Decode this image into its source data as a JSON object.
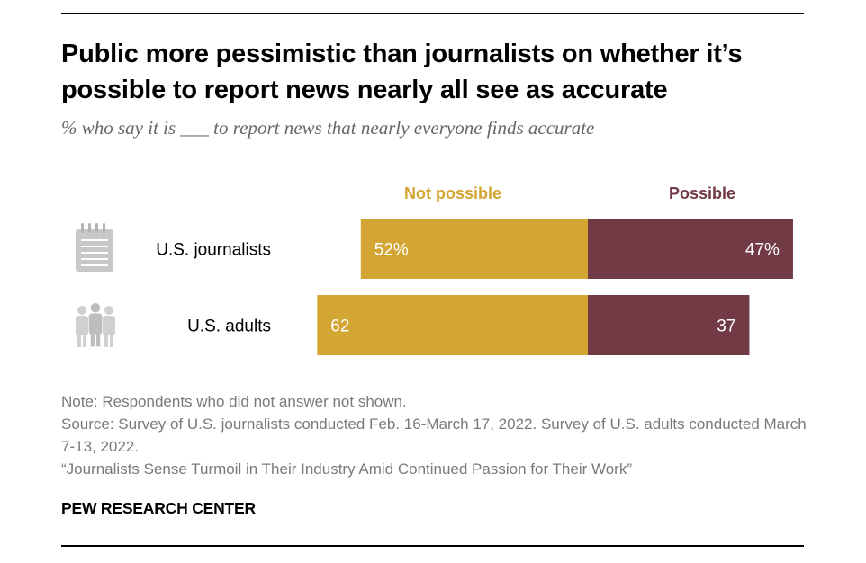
{
  "header": {
    "title": "Public more pessimistic than journalists on whether it’s possible to report news nearly all see as accurate",
    "subtitle": "% who say it is ___ to report news that nearly everyone finds accurate"
  },
  "chart_data": {
    "type": "bar",
    "orientation": "horizontal-diverging-stacked",
    "categories": [
      "U.S. journalists",
      "U.S. adults"
    ],
    "series": [
      {
        "name": "Not possible",
        "values": [
          52,
          62
        ],
        "labels": [
          "52%",
          "62"
        ],
        "color": "#d3a532"
      },
      {
        "name": "Possible",
        "values": [
          47,
          37
        ],
        "labels": [
          "47%",
          "37"
        ],
        "color": "#713a45"
      }
    ],
    "category_icons": [
      "notepad-icon",
      "people-group-icon"
    ],
    "legend_placement": "top",
    "grid": false,
    "xlim": [
      0,
      100
    ]
  },
  "footer": {
    "note": "Note: Respondents who did not answer not shown.",
    "source": "Source: Survey of U.S. journalists conducted Feb. 16-March 17, 2022. Survey of U.S. adults conducted March 7-13, 2022.",
    "report": "“Journalists Sense Turmoil in Their Industry Amid Continued Passion for Their Work”",
    "brand": "PEW RESEARCH CENTER"
  }
}
